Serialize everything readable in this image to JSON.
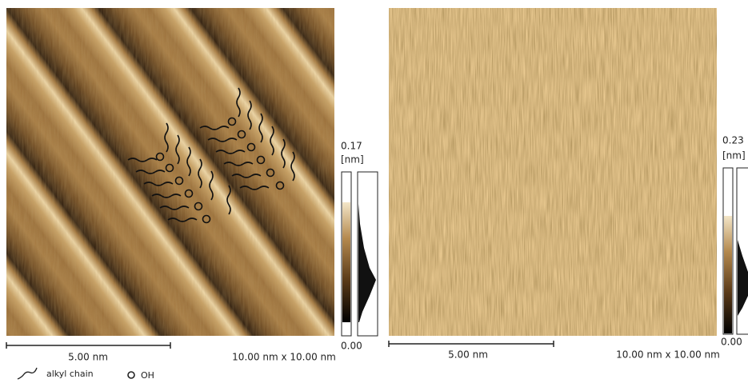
{
  "panels": [
    {
      "scale_label": "5.00 nm",
      "size_label": "10.00 nm x 10.00 nm",
      "colorbar": {
        "max": "0.17",
        "unit": "[nm]",
        "min": "0.00"
      }
    },
    {
      "scale_label": "5.00 nm",
      "size_label": "10.00 nm x 10.00 nm",
      "colorbar": {
        "max": "0.23",
        "unit": "[nm]",
        "min": "0.00"
      }
    }
  ],
  "legend": {
    "chain": "alkyl chain",
    "oh": "OH"
  }
}
